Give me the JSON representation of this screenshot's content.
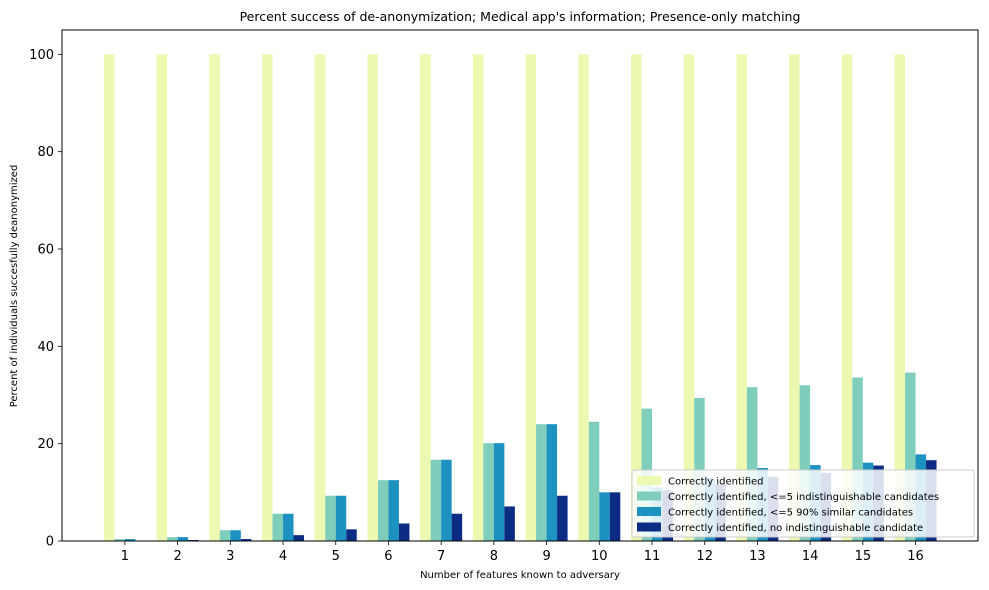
{
  "chart_data": {
    "type": "bar",
    "title": "Percent success of de-anonymization; Medical app's information; Presence-only matching",
    "xlabel": "Number of features known to adversary",
    "ylabel": "Percent of individuals succesfully deanonymized",
    "categories": [
      "1",
      "2",
      "3",
      "4",
      "5",
      "6",
      "7",
      "8",
      "9",
      "10",
      "11",
      "12",
      "13",
      "14",
      "15",
      "16"
    ],
    "ylim": [
      0,
      105
    ],
    "yticks": [
      0,
      20,
      40,
      60,
      80,
      100
    ],
    "grid": false,
    "legend_position": "lower-right",
    "series": [
      {
        "name": "Correctly identified",
        "color": "#edf8b1",
        "values": [
          100,
          100,
          100,
          100,
          100,
          100,
          100,
          100,
          100,
          100,
          100,
          100,
          100,
          100,
          100,
          100
        ]
      },
      {
        "name": "Correctly identified, <=5 indistinguishable candidates",
        "color": "#7fcdbb",
        "values": [
          0.4,
          0.8,
          2.2,
          5.6,
          9.3,
          12.5,
          16.7,
          20.1,
          24.0,
          24.5,
          27.2,
          29.4,
          31.6,
          32.0,
          33.6,
          34.6
        ]
      },
      {
        "name": "Correctly identified, <=5 90% similar candidates",
        "color": "#1d91c0",
        "values": [
          0.4,
          0.8,
          2.2,
          5.6,
          9.3,
          12.5,
          16.7,
          20.1,
          24.0,
          10.0,
          11.0,
          13.0,
          15.0,
          15.6,
          16.1,
          17.8
        ]
      },
      {
        "name": "Correctly identified, no indistinguishable candidate",
        "color": "#0c2c84",
        "values": [
          0.0,
          0.2,
          0.4,
          1.2,
          2.4,
          3.6,
          5.6,
          7.1,
          9.3,
          10.0,
          10.4,
          11.6,
          13.2,
          14.0,
          15.5,
          16.6
        ]
      }
    ]
  }
}
